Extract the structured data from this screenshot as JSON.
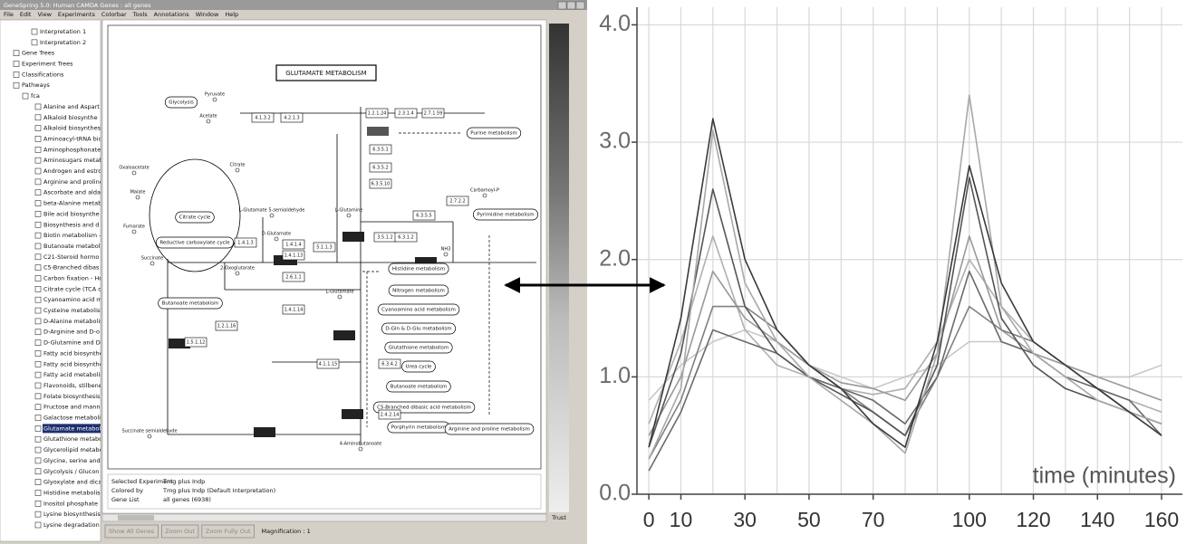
{
  "window": {
    "title": "GeneSpring 5.0: Human CAMDA Genes : all genes",
    "menu": [
      "File",
      "Edit",
      "View",
      "Experiments",
      "Colorbar",
      "Tools",
      "Annotations",
      "Window",
      "Help"
    ]
  },
  "tree": {
    "items": [
      "Interpretation 1",
      "Interpretation 2",
      "Gene Trees",
      "Experiment Trees",
      "Classifications",
      "Pathways",
      "fca",
      "Alanine and Aspart",
      "Alkaloid biosynthe",
      "Alkaloid biosynthes",
      "Aminoacyl-tRNA bio",
      "Aminophosphonate",
      "Aminosugars metab",
      "Androgen and estro",
      "Arginine and proline",
      "Ascorbate and alda",
      "beta-Alanine metab",
      "Bile acid biosynthe",
      "Biosynthesis and d",
      "Biotin metabolism -",
      "Butanoate metaboli",
      "C21-Steroid hormo",
      "C5-Branched dibas",
      "Carbon fixation - Ho",
      "Citrate cycle (TCA c",
      "Cyanoamino acid m",
      "Cysteine metabolism",
      "D-Alanine metabolis",
      "D-Arginine and D-o",
      "D-Glutamine and D-",
      "Fatty acid biosynthe",
      "Fatty acid biosynthe",
      "Fatty acid metabolis",
      "Flavonoids, stilbene",
      "Folate biosynthesis",
      "Fructose and mann",
      "Galactose metabolis",
      "Glutamate metabolis",
      "Glutathione metabo",
      "Glycerolipid metabo",
      "Glycine, serine and",
      "Glycolysis / Glucon",
      "Glyoxylate and dica",
      "Histidine metabolis",
      "Inositol phosphate",
      "Lysine biosynthesis",
      "Lysine degradation"
    ],
    "selected": 37
  },
  "pathway": {
    "title": "GLUTAMATE METABOLISM",
    "links": [
      "Glycolysis",
      "Citrate cycle",
      "Reductive carboxylate cycle",
      "Butanoate metabolism",
      "Purine metabolism",
      "Pyrimidine metabolism",
      "Histidine metabolism",
      "Nitrogen metabolism",
      "Cyanoamino acid metabolism",
      "D-Gln & D-Glu metabolism",
      "Glutathione metabolism",
      "Urea cycle",
      "Butanoate metabolism",
      "C5-Branched dibasic acid metabolism",
      "Porphyrin metabolism",
      "Arginine and proline metabolism"
    ],
    "enzymes": [
      "4.1.3.2",
      "4.2.1.3",
      "1.2.1.24",
      "2.3.1.4",
      "2.7.1.59",
      "6.3.5.1",
      "6.3.5.2",
      "6.3.5.10",
      "2.7.2.2",
      "6.3.5.5",
      "1.4.1.3",
      "1.4.1.4",
      "1.4.1.13",
      "2.6.1.1",
      "1.4.1.14",
      "3.5.1.2",
      "6.3.1.2",
      "5.1.1.3",
      "4.1.1.15",
      "6.3.4.2",
      "1.5.1.12",
      "2.4.2.14",
      "1.2.1.16"
    ],
    "metabolites": [
      "Pyruvate",
      "Acetate",
      "Oxaloacetate",
      "Malate",
      "Fumarate",
      "Succinate",
      "Citrate",
      "2-Oxoglutarate",
      "L-Glutamate",
      "L-Glutamine",
      "D-Glutamate",
      "4-Aminobutanoate",
      "Succinate semialdehyde",
      "Carbamoyl-P",
      "NH3",
      "L-Glutamate 5-semialdehyde"
    ]
  },
  "info": {
    "rows": [
      [
        "Selected Experiment",
        "Tmg plus Indp"
      ],
      [
        "Colored by",
        "Tmg plus Indp (Default Interpretation)"
      ],
      [
        "Gene List",
        "all genes (6938)"
      ]
    ]
  },
  "controls": {
    "buttons": [
      "Show All Genes",
      "Zoom Out",
      "Zoom Fully Out"
    ],
    "magnification": "Magnification : 1",
    "scale_label": "Trust"
  },
  "chart_data": {
    "type": "line",
    "x_label": "time (minutes)",
    "x": [
      0,
      10,
      20,
      30,
      40,
      50,
      60,
      70,
      80,
      90,
      100,
      110,
      120,
      130,
      140,
      150,
      160
    ],
    "xlim": [
      -3.7,
      166.5
    ],
    "xticks": [
      0,
      10,
      30,
      50,
      70,
      100,
      120,
      140,
      160
    ],
    "ylim": [
      0,
      4.15
    ],
    "yticks": [
      {
        "value": 0,
        "label": "0.0"
      },
      {
        "value": 1,
        "label": "1.0"
      },
      {
        "value": 2,
        "label": "2.0"
      },
      {
        "value": 3,
        "label": "3.0"
      },
      {
        "value": 4,
        "label": "4.0"
      }
    ],
    "grid": true,
    "series": [
      {
        "color": "#c8c8c8",
        "values": [
          0.8,
          1.1,
          1.3,
          1.4,
          1.3,
          1.1,
          1.0,
          0.9,
          1.0,
          1.1,
          1.3,
          1.3,
          1.2,
          1.1,
          1.0,
          1.0,
          1.1
        ]
      },
      {
        "color": "#b0b0b0",
        "values": [
          0.6,
          1.3,
          2.2,
          1.4,
          1.1,
          1.0,
          0.9,
          0.85,
          0.9,
          1.3,
          2.0,
          1.6,
          1.3,
          1.1,
          0.9,
          0.8,
          0.7
        ]
      },
      {
        "color": "#999999",
        "values": [
          0.5,
          1.0,
          1.9,
          1.5,
          1.3,
          1.1,
          0.95,
          0.9,
          0.8,
          1.2,
          2.2,
          1.4,
          1.2,
          1.1,
          1.0,
          0.9,
          0.8
        ]
      },
      {
        "color": "#808080",
        "values": [
          0.3,
          0.8,
          1.6,
          1.6,
          1.4,
          1.1,
          0.9,
          0.7,
          0.5,
          1.0,
          1.6,
          1.4,
          1.3,
          1.1,
          0.9,
          0.7,
          0.6
        ]
      },
      {
        "color": "#6a6a6a",
        "values": [
          0.2,
          0.7,
          1.4,
          1.3,
          1.2,
          1.0,
          0.9,
          0.8,
          0.6,
          1.0,
          1.9,
          1.3,
          1.2,
          1.0,
          0.9,
          0.8,
          0.5
        ]
      },
      {
        "color": "#555555",
        "values": [
          0.4,
          1.2,
          2.6,
          1.6,
          1.2,
          1.0,
          0.85,
          0.7,
          0.5,
          1.1,
          2.7,
          1.5,
          1.1,
          0.9,
          0.8,
          0.7,
          0.6
        ]
      },
      {
        "color": "#a8a8a8",
        "values": [
          0.3,
          0.9,
          3.1,
          1.8,
          1.3,
          1.0,
          0.8,
          0.6,
          0.35,
          1.2,
          3.4,
          1.6,
          1.2,
          1.0,
          0.8,
          0.7,
          0.6
        ]
      },
      {
        "color": "#3a3a3a",
        "values": [
          0.4,
          1.5,
          3.2,
          2.0,
          1.4,
          1.1,
          0.9,
          0.6,
          0.4,
          1.3,
          2.8,
          1.8,
          1.3,
          1.1,
          0.9,
          0.7,
          0.5
        ]
      }
    ]
  }
}
